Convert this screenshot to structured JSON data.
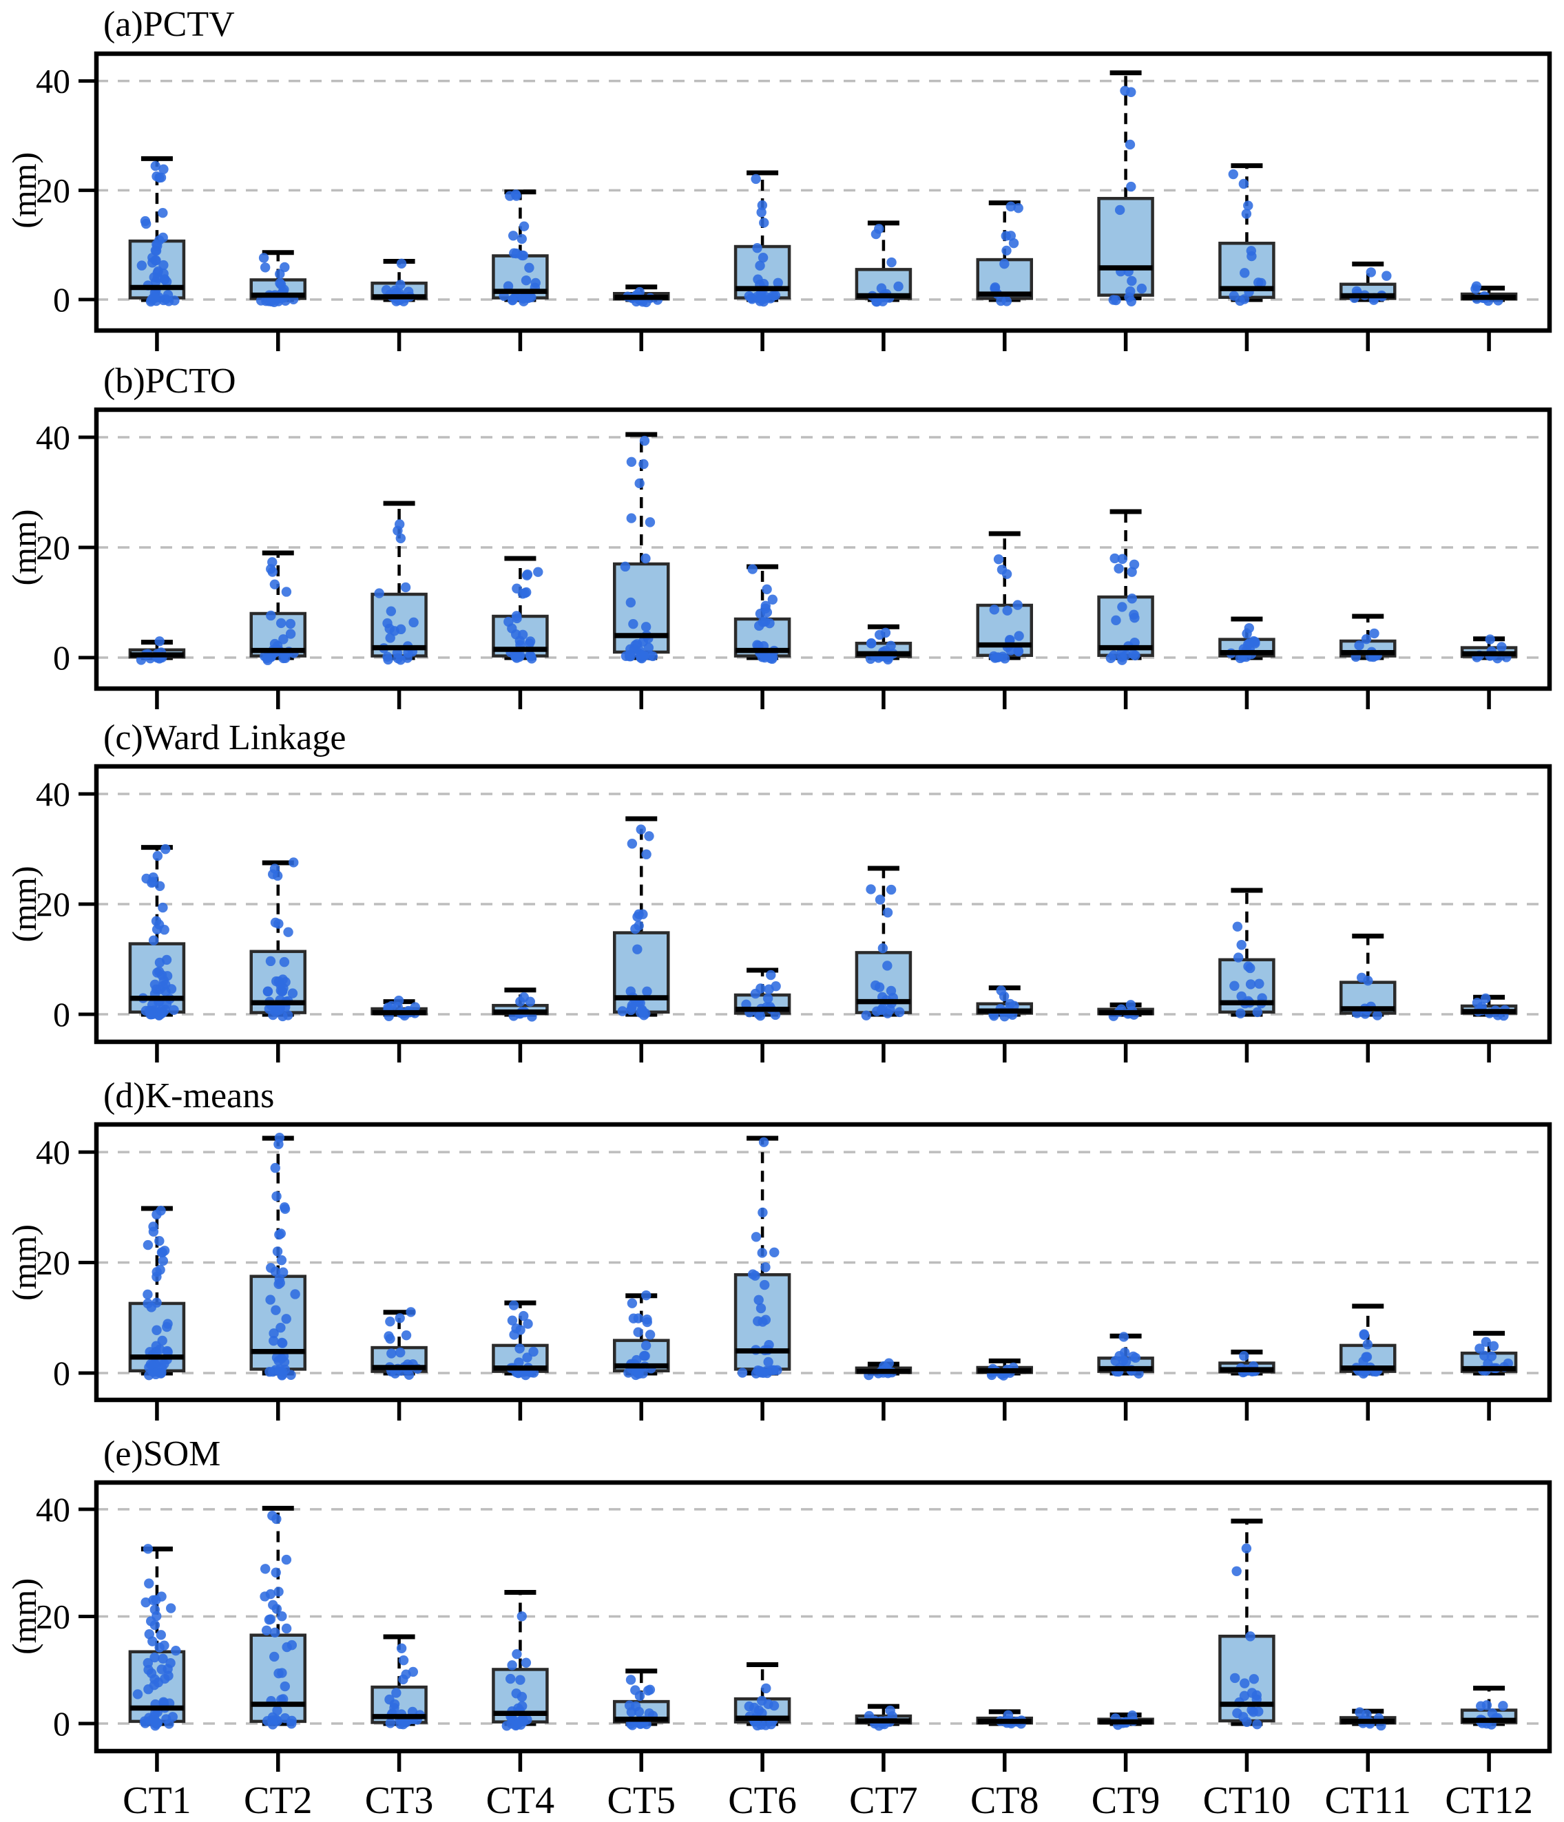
{
  "figure": {
    "type_note": "five stacked box-and-jitter plots comparing clustering methods"
  },
  "style": {
    "box_fill": "#9cc4e4",
    "box_edge": "#2b2b2b",
    "median_color": "#000000",
    "whisker_color": "#000000",
    "point_color": "#2f6ce0",
    "grid_color": "#bdbdbd",
    "axis_color": "#000000",
    "background": "#ffffff"
  },
  "chart_data": {
    "type": "bar",
    "subtype": "boxplot-with-jitter",
    "ylabel": "(mm)",
    "yticks": [
      0,
      20,
      40
    ],
    "ylim": [
      -5.7,
      45.1
    ],
    "grid": "dashed horizontal at yticks",
    "categories": [
      "CT1",
      "CT2",
      "CT3",
      "CT4",
      "CT5",
      "CT6",
      "CT7",
      "CT8",
      "CT9",
      "CT10",
      "CT11",
      "CT12"
    ],
    "panels": [
      {
        "id": "a",
        "title": "(a)PCTV",
        "boxes": [
          {
            "category": "CT1",
            "whislo": 0,
            "q1": 0.3,
            "med": 2.2,
            "q3": 10.7,
            "whishi": 25.8,
            "points_n": 45
          },
          {
            "category": "CT2",
            "whislo": 0,
            "q1": 0.2,
            "med": 0.8,
            "q3": 3.6,
            "whishi": 8.6,
            "points_n": 26
          },
          {
            "category": "CT3",
            "whislo": 0,
            "q1": 0.2,
            "med": 0.5,
            "q3": 3.0,
            "whishi": 7.0,
            "points_n": 18
          },
          {
            "category": "CT4",
            "whislo": 0,
            "q1": 0.3,
            "med": 1.5,
            "q3": 8.0,
            "whishi": 19.7,
            "points_n": 28
          },
          {
            "category": "CT5",
            "whislo": 0,
            "q1": 0.1,
            "med": 0.4,
            "q3": 1.1,
            "whishi": 2.3,
            "points_n": 12
          },
          {
            "category": "CT6",
            "whislo": 0,
            "q1": 0.3,
            "med": 2.0,
            "q3": 9.7,
            "whishi": 23.2,
            "points_n": 26
          },
          {
            "category": "CT7",
            "whislo": 0,
            "q1": 0.2,
            "med": 0.7,
            "q3": 5.5,
            "whishi": 14.0,
            "points_n": 14
          },
          {
            "category": "CT8",
            "whislo": 0,
            "q1": 0.2,
            "med": 1.0,
            "q3": 7.3,
            "whishi": 17.7,
            "points_n": 12
          },
          {
            "category": "CT9",
            "whislo": 0.3,
            "q1": 0.8,
            "med": 5.8,
            "q3": 18.5,
            "whishi": 41.5,
            "points_n": 14
          },
          {
            "category": "CT10",
            "whislo": 0,
            "q1": 0.4,
            "med": 2.0,
            "q3": 10.3,
            "whishi": 24.5,
            "points_n": 13
          },
          {
            "category": "CT11",
            "whislo": 0,
            "q1": 0.2,
            "med": 0.7,
            "q3": 2.8,
            "whishi": 6.5,
            "points_n": 10
          },
          {
            "category": "CT12",
            "whislo": 0,
            "q1": 0.1,
            "med": 0.4,
            "q3": 1.0,
            "whishi": 2.1,
            "points_n": 8
          }
        ]
      },
      {
        "id": "b",
        "title": "(b)PCTO",
        "boxes": [
          {
            "category": "CT1",
            "whislo": 0,
            "q1": 0.1,
            "med": 0.5,
            "q3": 1.4,
            "whishi": 2.8,
            "points_n": 14
          },
          {
            "category": "CT2",
            "whislo": 0,
            "q1": 0.3,
            "med": 1.3,
            "q3": 8.0,
            "whishi": 19.0,
            "points_n": 30
          },
          {
            "category": "CT3",
            "whislo": 0,
            "q1": 0.3,
            "med": 1.8,
            "q3": 11.5,
            "whishi": 28.0,
            "points_n": 22
          },
          {
            "category": "CT4",
            "whislo": 0,
            "q1": 0.3,
            "med": 1.5,
            "q3": 7.5,
            "whishi": 18.0,
            "points_n": 28
          },
          {
            "category": "CT5",
            "whislo": 0,
            "q1": 1.0,
            "med": 4.0,
            "q3": 17.0,
            "whishi": 40.5,
            "points_n": 34
          },
          {
            "category": "CT6",
            "whislo": 0,
            "q1": 0.3,
            "med": 1.3,
            "q3": 7.0,
            "whishi": 16.5,
            "points_n": 24
          },
          {
            "category": "CT7",
            "whislo": 0,
            "q1": 0.2,
            "med": 0.7,
            "q3": 2.6,
            "whishi": 5.6,
            "points_n": 18
          },
          {
            "category": "CT8",
            "whislo": 0,
            "q1": 0.4,
            "med": 2.3,
            "q3": 9.5,
            "whishi": 22.5,
            "points_n": 20
          },
          {
            "category": "CT9",
            "whislo": 0,
            "q1": 0.4,
            "med": 1.8,
            "q3": 11.0,
            "whishi": 26.5,
            "points_n": 20
          },
          {
            "category": "CT10",
            "whislo": 0,
            "q1": 0.3,
            "med": 0.9,
            "q3": 3.3,
            "whishi": 7.0,
            "points_n": 15
          },
          {
            "category": "CT11",
            "whislo": 0,
            "q1": 0.3,
            "med": 0.9,
            "q3": 3.0,
            "whishi": 7.5,
            "points_n": 10
          },
          {
            "category": "CT12",
            "whislo": 0,
            "q1": 0.2,
            "med": 0.7,
            "q3": 1.8,
            "whishi": 3.4,
            "points_n": 10
          }
        ]
      },
      {
        "id": "c",
        "title": "(c)Ward Linkage",
        "boxes": [
          {
            "category": "CT1",
            "whislo": 0,
            "q1": 0.4,
            "med": 2.9,
            "q3": 12.8,
            "whishi": 30.3,
            "points_n": 50
          },
          {
            "category": "CT2",
            "whislo": 0,
            "q1": 0.3,
            "med": 2.1,
            "q3": 11.4,
            "whishi": 27.5,
            "points_n": 35
          },
          {
            "category": "CT3",
            "whislo": 0,
            "q1": 0.1,
            "med": 0.3,
            "q3": 1.0,
            "whishi": 2.3,
            "points_n": 15
          },
          {
            "category": "CT4",
            "whislo": 0,
            "q1": 0.1,
            "med": 0.4,
            "q3": 1.6,
            "whishi": 4.4,
            "points_n": 10
          },
          {
            "category": "CT5",
            "whislo": 0,
            "q1": 0.4,
            "med": 3.0,
            "q3": 14.8,
            "whishi": 35.5,
            "points_n": 25
          },
          {
            "category": "CT6",
            "whislo": 0,
            "q1": 0.2,
            "med": 0.9,
            "q3": 3.5,
            "whishi": 8.0,
            "points_n": 15
          },
          {
            "category": "CT7",
            "whislo": 0,
            "q1": 0.3,
            "med": 2.3,
            "q3": 11.2,
            "whishi": 26.5,
            "points_n": 20
          },
          {
            "category": "CT8",
            "whislo": 0,
            "q1": 0.2,
            "med": 0.6,
            "q3": 1.9,
            "whishi": 4.8,
            "points_n": 12
          },
          {
            "category": "CT9",
            "whislo": 0,
            "q1": 0.1,
            "med": 0.3,
            "q3": 0.9,
            "whishi": 1.7,
            "points_n": 8
          },
          {
            "category": "CT10",
            "whislo": 0,
            "q1": 0.4,
            "med": 2.1,
            "q3": 9.9,
            "whishi": 22.5,
            "points_n": 16
          },
          {
            "category": "CT11",
            "whislo": 0,
            "q1": 0.2,
            "med": 1.0,
            "q3": 5.8,
            "whishi": 14.2,
            "points_n": 8
          },
          {
            "category": "CT12",
            "whislo": 0,
            "q1": 0.2,
            "med": 0.5,
            "q3": 1.5,
            "whishi": 3.1,
            "points_n": 10
          }
        ]
      },
      {
        "id": "d",
        "title": "(d)K-means",
        "boxes": [
          {
            "category": "CT1",
            "whislo": 0,
            "q1": 0.4,
            "med": 2.9,
            "q3": 12.6,
            "whishi": 29.8,
            "points_n": 45
          },
          {
            "category": "CT2",
            "whislo": 0,
            "q1": 0.7,
            "med": 3.9,
            "q3": 17.5,
            "whishi": 42.5,
            "points_n": 40
          },
          {
            "category": "CT3",
            "whislo": 0,
            "q1": 0.3,
            "med": 1.0,
            "q3": 4.6,
            "whishi": 11.0,
            "points_n": 20
          },
          {
            "category": "CT4",
            "whislo": 0,
            "q1": 0.3,
            "med": 0.9,
            "q3": 5.0,
            "whishi": 12.7,
            "points_n": 25
          },
          {
            "category": "CT5",
            "whislo": 0,
            "q1": 0.4,
            "med": 1.3,
            "q3": 5.9,
            "whishi": 14.0,
            "points_n": 25
          },
          {
            "category": "CT6",
            "whislo": 0,
            "q1": 0.7,
            "med": 4.0,
            "q3": 17.8,
            "whishi": 42.5,
            "points_n": 30
          },
          {
            "category": "CT7",
            "whislo": 0,
            "q1": 0.1,
            "med": 0.3,
            "q3": 0.9,
            "whishi": 1.6,
            "points_n": 10
          },
          {
            "category": "CT8",
            "whislo": 0,
            "q1": 0.1,
            "med": 0.4,
            "q3": 1.0,
            "whishi": 2.2,
            "points_n": 10
          },
          {
            "category": "CT9",
            "whislo": 0,
            "q1": 0.3,
            "med": 0.8,
            "q3": 2.7,
            "whishi": 6.7,
            "points_n": 15
          },
          {
            "category": "CT10",
            "whislo": 0,
            "q1": 0.2,
            "med": 0.6,
            "q3": 1.8,
            "whishi": 3.8,
            "points_n": 10
          },
          {
            "category": "CT11",
            "whislo": 0,
            "q1": 0.3,
            "med": 0.9,
            "q3": 5.0,
            "whishi": 12.1,
            "points_n": 15
          },
          {
            "category": "CT12",
            "whislo": 0,
            "q1": 0.3,
            "med": 0.8,
            "q3": 3.6,
            "whishi": 7.2,
            "points_n": 12
          }
        ]
      },
      {
        "id": "e",
        "title": "(e)SOM",
        "boxes": [
          {
            "category": "CT1",
            "whislo": 0,
            "q1": 0.4,
            "med": 2.9,
            "q3": 13.4,
            "whishi": 32.6,
            "points_n": 55
          },
          {
            "category": "CT2",
            "whislo": 0,
            "q1": 0.4,
            "med": 3.6,
            "q3": 16.5,
            "whishi": 40.2,
            "points_n": 35
          },
          {
            "category": "CT3",
            "whislo": 0,
            "q1": 0.2,
            "med": 1.3,
            "q3": 6.8,
            "whishi": 16.2,
            "points_n": 25
          },
          {
            "category": "CT4",
            "whislo": 0,
            "q1": 0.3,
            "med": 1.9,
            "q3": 10.1,
            "whishi": 24.5,
            "points_n": 25
          },
          {
            "category": "CT5",
            "whislo": 0,
            "q1": 0.3,
            "med": 0.8,
            "q3": 4.1,
            "whishi": 9.8,
            "points_n": 20
          },
          {
            "category": "CT6",
            "whislo": 0,
            "q1": 0.3,
            "med": 1.0,
            "q3": 4.6,
            "whishi": 11.0,
            "points_n": 18
          },
          {
            "category": "CT7",
            "whislo": 0,
            "q1": 0.1,
            "med": 0.5,
            "q3": 1.4,
            "whishi": 3.2,
            "points_n": 12
          },
          {
            "category": "CT8",
            "whislo": 0,
            "q1": 0.1,
            "med": 0.4,
            "q3": 1.0,
            "whishi": 2.2,
            "points_n": 10
          },
          {
            "category": "CT9",
            "whislo": 0,
            "q1": 0.1,
            "med": 0.3,
            "q3": 0.8,
            "whishi": 1.6,
            "points_n": 8
          },
          {
            "category": "CT10",
            "whislo": 0,
            "q1": 0.5,
            "med": 3.6,
            "q3": 16.3,
            "whishi": 37.8,
            "points_n": 18
          },
          {
            "category": "CT11",
            "whislo": 0,
            "q1": 0.1,
            "med": 0.4,
            "q3": 1.1,
            "whishi": 2.3,
            "points_n": 8
          },
          {
            "category": "CT12",
            "whislo": 0,
            "q1": 0.2,
            "med": 0.6,
            "q3": 2.5,
            "whishi": 6.6,
            "points_n": 12
          }
        ]
      }
    ]
  }
}
